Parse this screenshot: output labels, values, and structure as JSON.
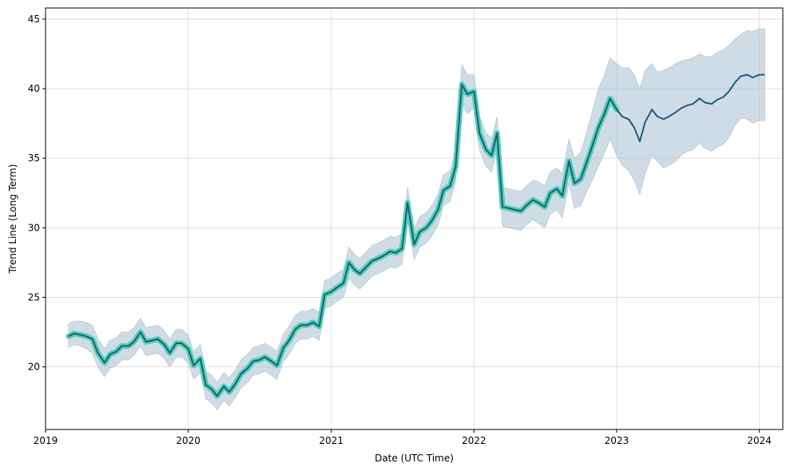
{
  "chart_data": {
    "type": "line",
    "title": "",
    "xlabel": "Date (UTC Time)",
    "ylabel": "Trend Line (Long Term)",
    "grid": true,
    "legend": "none",
    "xlim": [
      "2019-01-01",
      "2024-03-01"
    ],
    "ylim": [
      15.5,
      45.8
    ],
    "x_ticks": [
      "2019",
      "2020",
      "2021",
      "2022",
      "2023",
      "2024"
    ],
    "y_ticks": [
      20,
      25,
      30,
      35,
      40,
      45
    ],
    "colors": {
      "trend_line": "#1f5a7e",
      "history_highlight": "#4fd1b0",
      "band_fill": "#a9bfd0",
      "grid": "#d9d9d9"
    },
    "series": [
      {
        "x": [
          "2019-03-01",
          "2019-03-15",
          "2019-04-01",
          "2019-04-15",
          "2019-05-01",
          "2019-05-15",
          "2019-06-01",
          "2019-06-15",
          "2019-07-01",
          "2019-07-15",
          "2019-08-01",
          "2019-08-15",
          "2019-09-01",
          "2019-09-15",
          "2019-10-01",
          "2019-10-15",
          "2019-11-01",
          "2019-11-15",
          "2019-12-01",
          "2019-12-15",
          "2020-01-01",
          "2020-01-15",
          "2020-02-01",
          "2020-02-15",
          "2020-03-01",
          "2020-03-15",
          "2020-04-01",
          "2020-04-15",
          "2020-05-01",
          "2020-05-15",
          "2020-06-01",
          "2020-06-15",
          "2020-07-01",
          "2020-07-15",
          "2020-08-01",
          "2020-08-15",
          "2020-09-01",
          "2020-09-15",
          "2020-10-01",
          "2020-10-15",
          "2020-11-01",
          "2020-11-15",
          "2020-12-01",
          "2020-12-15",
          "2021-01-01",
          "2021-01-15",
          "2021-02-01",
          "2021-02-15",
          "2021-03-01",
          "2021-03-15",
          "2021-04-01",
          "2021-04-15",
          "2021-05-01",
          "2021-05-15",
          "2021-06-01",
          "2021-06-15",
          "2021-07-01",
          "2021-07-15",
          "2021-08-01",
          "2021-08-15",
          "2021-09-01",
          "2021-09-15",
          "2021-10-01",
          "2021-10-15",
          "2021-11-01",
          "2021-11-15",
          "2021-12-01",
          "2021-12-15",
          "2022-01-01",
          "2022-01-15",
          "2022-02-01",
          "2022-02-15",
          "2022-03-01",
          "2022-03-15",
          "2022-04-01",
          "2022-04-15",
          "2022-05-01",
          "2022-05-15",
          "2022-06-01",
          "2022-06-15",
          "2022-07-01",
          "2022-07-15",
          "2022-08-01",
          "2022-08-15",
          "2022-09-01",
          "2022-09-15",
          "2022-10-01",
          "2022-10-15",
          "2022-11-01",
          "2022-11-15",
          "2022-12-01",
          "2022-12-15",
          "2023-01-01",
          "2023-01-15",
          "2023-02-01",
          "2023-02-15",
          "2023-03-01",
          "2023-03-15",
          "2023-04-01",
          "2023-04-15",
          "2023-05-01",
          "2023-05-15",
          "2023-06-01",
          "2023-06-15",
          "2023-07-01",
          "2023-07-15",
          "2023-08-01",
          "2023-08-15",
          "2023-09-01",
          "2023-09-15",
          "2023-10-01",
          "2023-10-15",
          "2023-11-01",
          "2023-11-15",
          "2023-12-01",
          "2023-12-15",
          "2024-01-01",
          "2024-01-15"
        ],
        "y": [
          22.2,
          22.4,
          22.3,
          22.2,
          22.0,
          21.0,
          20.3,
          20.9,
          21.1,
          21.5,
          21.5,
          21.8,
          22.5,
          21.8,
          21.9,
          22.0,
          21.6,
          21.0,
          21.7,
          21.7,
          21.3,
          20.1,
          20.6,
          18.7,
          18.4,
          17.9,
          18.6,
          18.2,
          18.8,
          19.5,
          19.9,
          20.4,
          20.5,
          20.7,
          20.4,
          20.1,
          21.4,
          21.9,
          22.7,
          23.0,
          23.0,
          23.2,
          22.9,
          25.2,
          25.4,
          25.7,
          26.0,
          27.5,
          27.0,
          26.7,
          27.2,
          27.6,
          27.8,
          28.0,
          28.3,
          28.2,
          28.5,
          31.8,
          28.8,
          29.7,
          30.0,
          30.5,
          31.3,
          32.7,
          33.0,
          34.4,
          40.3,
          39.6,
          39.8,
          36.8,
          35.6,
          35.2,
          36.8,
          31.5,
          31.4,
          31.3,
          31.2,
          31.6,
          32.0,
          31.8,
          31.5,
          32.5,
          32.8,
          32.3,
          34.8,
          33.2,
          33.5,
          34.6,
          36.0,
          37.2,
          38.2,
          39.3,
          38.5,
          38.0,
          37.8,
          37.2,
          36.2,
          37.6,
          38.5,
          38.0,
          37.8,
          38.0,
          38.3,
          38.6,
          38.8,
          38.9,
          39.3,
          39.0,
          38.9,
          39.2,
          39.4,
          39.8,
          40.5,
          40.9,
          41.0,
          40.8,
          41.0,
          41.0
        ],
        "upper": [
          23.1,
          23.3,
          23.3,
          23.2,
          23.0,
          22.0,
          21.3,
          21.9,
          22.1,
          22.5,
          22.5,
          22.8,
          23.5,
          22.8,
          22.9,
          23.0,
          22.6,
          22.0,
          22.7,
          22.7,
          22.3,
          21.1,
          21.6,
          19.7,
          19.4,
          18.9,
          19.6,
          19.2,
          19.8,
          20.5,
          20.9,
          21.4,
          21.5,
          21.7,
          21.4,
          21.1,
          22.4,
          22.9,
          23.7,
          24.0,
          24.0,
          24.2,
          23.9,
          26.2,
          26.4,
          26.7,
          27.0,
          28.6,
          28.1,
          27.8,
          28.3,
          28.7,
          28.9,
          29.1,
          29.4,
          29.3,
          29.6,
          32.9,
          29.9,
          30.8,
          31.1,
          31.6,
          32.4,
          33.8,
          34.1,
          35.5,
          41.7,
          41.0,
          41.0,
          38.0,
          36.8,
          36.4,
          38.0,
          32.9,
          32.8,
          32.7,
          32.6,
          33.0,
          33.4,
          33.3,
          33.0,
          34.0,
          34.3,
          33.9,
          36.4,
          35.0,
          35.4,
          36.7,
          38.5,
          40.0,
          41.0,
          42.2,
          41.8,
          41.5,
          41.5,
          41.0,
          40.0,
          41.3,
          41.8,
          41.2,
          41.3,
          41.5,
          41.8,
          42.0,
          42.1,
          42.2,
          42.5,
          42.3,
          42.3,
          42.6,
          42.8,
          43.1,
          43.6,
          43.9,
          44.2,
          44.1,
          44.3,
          44.3
        ],
        "lower": [
          21.4,
          21.6,
          21.5,
          21.3,
          21.0,
          20.0,
          19.3,
          19.9,
          20.1,
          20.5,
          20.5,
          20.8,
          21.5,
          20.8,
          20.9,
          21.0,
          20.6,
          20.0,
          20.7,
          20.7,
          20.3,
          19.1,
          19.6,
          17.7,
          17.4,
          16.9,
          17.6,
          17.2,
          17.8,
          18.5,
          18.9,
          19.4,
          19.5,
          19.7,
          19.4,
          19.1,
          20.4,
          20.9,
          21.7,
          22.0,
          22.0,
          22.2,
          21.9,
          24.2,
          24.4,
          24.7,
          25.0,
          26.4,
          25.9,
          25.6,
          26.1,
          26.5,
          26.7,
          26.9,
          27.2,
          27.1,
          27.4,
          30.7,
          27.7,
          28.6,
          28.9,
          29.4,
          30.2,
          31.6,
          31.9,
          33.3,
          38.9,
          38.2,
          38.6,
          35.6,
          34.4,
          34.0,
          35.6,
          30.1,
          30.0,
          29.9,
          29.8,
          30.2,
          30.6,
          30.3,
          30.0,
          31.0,
          31.3,
          30.7,
          33.2,
          31.4,
          31.6,
          32.5,
          33.5,
          34.4,
          35.4,
          36.4,
          35.2,
          34.5,
          34.1,
          33.4,
          32.4,
          33.9,
          35.2,
          34.8,
          34.3,
          34.5,
          34.8,
          35.2,
          35.5,
          35.6,
          36.1,
          35.7,
          35.5,
          35.8,
          36.0,
          36.5,
          37.4,
          37.9,
          37.8,
          37.5,
          37.7,
          37.7
        ]
      }
    ],
    "history_end": "2023-01-01"
  }
}
